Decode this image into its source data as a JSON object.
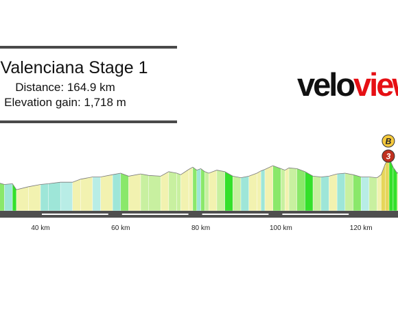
{
  "header": {
    "title": "Valenciana Stage 1",
    "distance_text": "Distance: 164.9 km",
    "elevation_text": "Elevation gain: 1,718 m"
  },
  "logo": {
    "part1": "velo",
    "part2": "view"
  },
  "colors": {
    "rule": "#4a4a4a",
    "axis_bar": "#4f4f4f",
    "sprint_badge": "#f5c93c",
    "climb_badge": "#c0301f",
    "logo_accent": "#e60f14",
    "gradient_palette": [
      "#c8f0a0",
      "#8ae86a",
      "#33e02a",
      "#9ee6d8",
      "#b8ede6",
      "#f2f2b0",
      "#e6d65a",
      "#d4d4d4"
    ]
  },
  "chart_data": {
    "type": "area",
    "title": "Valenciana Stage 1",
    "xlabel": "",
    "ylabel": "",
    "x_unit": "km",
    "xlim": [
      29,
      131
    ],
    "x_ticks": [
      40,
      60,
      80,
      100,
      120
    ],
    "x_tick_labels": [
      "40 km",
      "60 km",
      "80 km",
      "100 km",
      "120 km"
    ],
    "series": [
      {
        "x": [
          29,
          31,
          33,
          34,
          37,
          40,
          42,
          45,
          48,
          50,
          53,
          55,
          58,
          60,
          62,
          65,
          67,
          70,
          72,
          74,
          75,
          77,
          78,
          79,
          80,
          81,
          82,
          84,
          86,
          88,
          90,
          92,
          94,
          95,
          96,
          98,
          100,
          101,
          102,
          104,
          106,
          108,
          110,
          112,
          114,
          116,
          118,
          120,
          122,
          124,
          125,
          126,
          127,
          128,
          129,
          130,
          131
        ],
        "elevation_rel": [
          38,
          35,
          36,
          28,
          32,
          35,
          36,
          38,
          38,
          42,
          45,
          45,
          48,
          50,
          46,
          49,
          47,
          46,
          52,
          50,
          48,
          55,
          58,
          54,
          56,
          52,
          50,
          54,
          52,
          46,
          44,
          46,
          50,
          53,
          55,
          60,
          56,
          54,
          57,
          56,
          52,
          46,
          45,
          46,
          49,
          50,
          48,
          45,
          45,
          44,
          48,
          62,
          70,
          58,
          50,
          54,
          60
        ]
      }
    ],
    "markers": [
      {
        "label": "B",
        "kind": "bonus-sprint",
        "x": 126.8
      },
      {
        "label": "3",
        "kind": "cat-3-climb",
        "x": 126.8
      }
    ],
    "grid": false,
    "legend": "none"
  }
}
